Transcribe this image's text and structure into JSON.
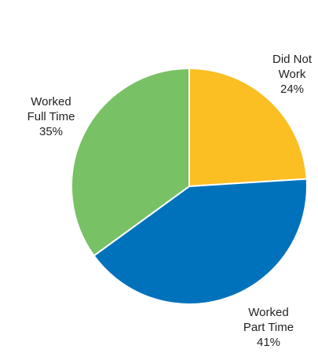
{
  "chart_data": {
    "type": "pie",
    "start_angle_deg": 0,
    "direction": "clockwise",
    "slices": [
      {
        "label_lines": [
          "Did Not",
          "Work"
        ],
        "pct_label": "24%",
        "value": 24,
        "color": "#fbbe23"
      },
      {
        "label_lines": [
          "Worked",
          "Part Time"
        ],
        "pct_label": "41%",
        "value": 41,
        "color": "#0072bc"
      },
      {
        "label_lines": [
          "Worked",
          "Full Time"
        ],
        "pct_label": "35%",
        "value": 35,
        "color": "#78c165"
      }
    ],
    "slice_border_color": "#ffffff"
  }
}
